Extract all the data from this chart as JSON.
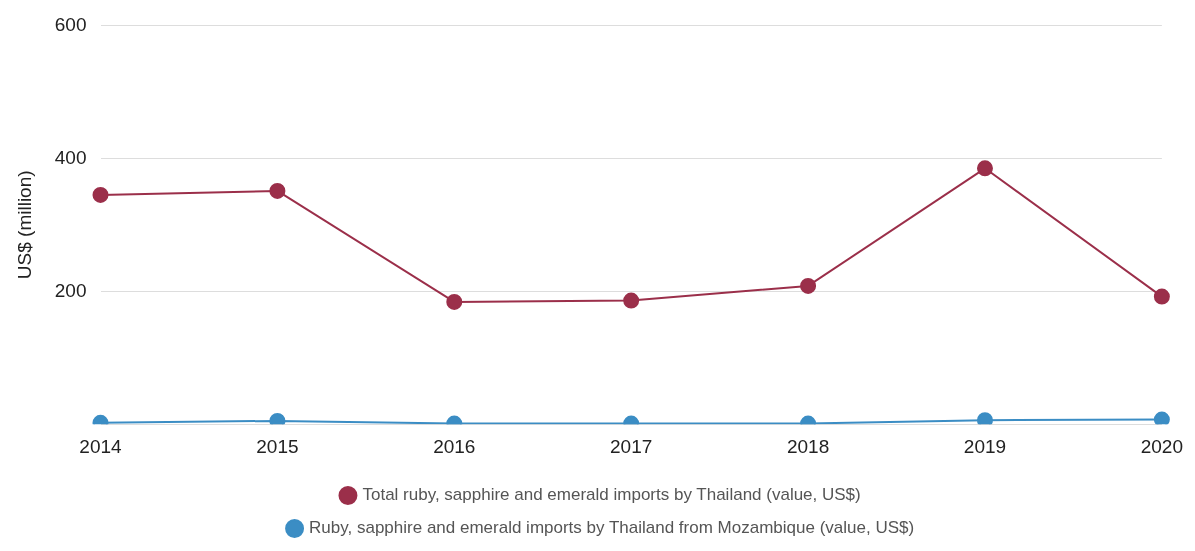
{
  "chart_data": {
    "type": "line",
    "ylabel": "US$ (million)",
    "categories": [
      "2014",
      "2015",
      "2016",
      "2017",
      "2018",
      "2019",
      "2020"
    ],
    "series": [
      {
        "name": "Total ruby, sapphire and emerald imports by Thailand (value, US$)",
        "color": "#9b2f4a",
        "values": [
          345,
          351,
          184,
          186,
          208,
          385,
          192
        ]
      },
      {
        "name": "Ruby, sapphire and emerald imports by Thailand from Mozambique (value, US$)",
        "color": "#3b8dc4",
        "values": [
          2,
          5,
          1,
          1,
          1,
          6,
          7
        ]
      }
    ],
    "ylim": [
      0,
      600
    ],
    "yticks": [
      {
        "value": 0,
        "label": null
      },
      200,
      400,
      600
    ],
    "grid": "y",
    "legend": "bottom",
    "marker": "circle",
    "line_style": "solid"
  }
}
